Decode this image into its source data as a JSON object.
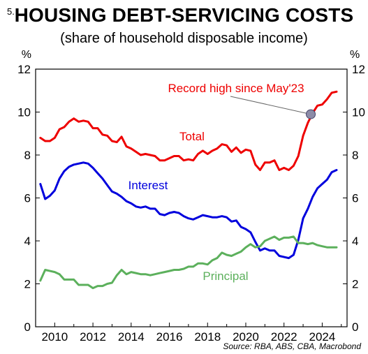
{
  "figure_number": "5.",
  "title": "HOUSING DEBT-SERVICING COSTS",
  "subtitle": "(share of household disposable income)",
  "source": "Source: RBA, ABS, CBA, Macrobond",
  "chart_data": {
    "type": "line",
    "y_unit_left": "%",
    "y_unit_right": "%",
    "xlim": [
      2009.0,
      2025.3
    ],
    "ylim": [
      0,
      12
    ],
    "x_ticks": [
      2010,
      2012,
      2014,
      2016,
      2018,
      2020,
      2022,
      2024
    ],
    "y_ticks": [
      0,
      2,
      4,
      6,
      8,
      10,
      12
    ],
    "grid": false,
    "series": [
      {
        "name": "Total",
        "color": "#ee0000",
        "points": [
          [
            2009.25,
            8.8
          ],
          [
            2009.5,
            8.65
          ],
          [
            2009.75,
            8.65
          ],
          [
            2010,
            8.8
          ],
          [
            2010.25,
            9.2
          ],
          [
            2010.5,
            9.3
          ],
          [
            2010.75,
            9.55
          ],
          [
            2011,
            9.7
          ],
          [
            2011.25,
            9.55
          ],
          [
            2011.5,
            9.6
          ],
          [
            2011.75,
            9.55
          ],
          [
            2012,
            9.25
          ],
          [
            2012.25,
            9.25
          ],
          [
            2012.5,
            8.95
          ],
          [
            2012.75,
            8.9
          ],
          [
            2013,
            8.65
          ],
          [
            2013.25,
            8.6
          ],
          [
            2013.5,
            8.85
          ],
          [
            2013.75,
            8.4
          ],
          [
            2014,
            8.3
          ],
          [
            2014.25,
            8.15
          ],
          [
            2014.5,
            8.0
          ],
          [
            2014.75,
            8.05
          ],
          [
            2015,
            8.0
          ],
          [
            2015.25,
            7.95
          ],
          [
            2015.5,
            7.75
          ],
          [
            2015.75,
            7.75
          ],
          [
            2016,
            7.85
          ],
          [
            2016.25,
            7.95
          ],
          [
            2016.5,
            7.95
          ],
          [
            2016.75,
            7.75
          ],
          [
            2017,
            7.8
          ],
          [
            2017.25,
            7.75
          ],
          [
            2017.5,
            8.05
          ],
          [
            2017.75,
            8.2
          ],
          [
            2018,
            8.05
          ],
          [
            2018.25,
            8.2
          ],
          [
            2018.5,
            8.3
          ],
          [
            2018.75,
            8.5
          ],
          [
            2019,
            8.45
          ],
          [
            2019.25,
            8.15
          ],
          [
            2019.5,
            8.35
          ],
          [
            2019.75,
            8.1
          ],
          [
            2020,
            8.25
          ],
          [
            2020.25,
            8.2
          ],
          [
            2020.5,
            7.55
          ],
          [
            2020.75,
            7.3
          ],
          [
            2021,
            7.65
          ],
          [
            2021.25,
            7.65
          ],
          [
            2021.5,
            7.75
          ],
          [
            2021.75,
            7.3
          ],
          [
            2022,
            7.4
          ],
          [
            2022.25,
            7.3
          ],
          [
            2022.5,
            7.5
          ],
          [
            2022.75,
            7.95
          ],
          [
            2023,
            8.9
          ],
          [
            2023.25,
            9.5
          ],
          [
            2023.5,
            9.95
          ],
          [
            2023.75,
            10.3
          ],
          [
            2024,
            10.35
          ],
          [
            2024.25,
            10.6
          ],
          [
            2024.5,
            10.9
          ],
          [
            2024.75,
            10.95
          ]
        ]
      },
      {
        "name": "Interest",
        "color": "#0000dd",
        "points": [
          [
            2009.25,
            6.65
          ],
          [
            2009.5,
            5.95
          ],
          [
            2009.75,
            6.1
          ],
          [
            2010,
            6.35
          ],
          [
            2010.25,
            6.9
          ],
          [
            2010.5,
            7.25
          ],
          [
            2010.75,
            7.45
          ],
          [
            2011,
            7.55
          ],
          [
            2011.25,
            7.6
          ],
          [
            2011.5,
            7.65
          ],
          [
            2011.75,
            7.6
          ],
          [
            2012,
            7.4
          ],
          [
            2012.25,
            7.15
          ],
          [
            2012.5,
            6.9
          ],
          [
            2012.75,
            6.6
          ],
          [
            2013,
            6.3
          ],
          [
            2013.25,
            6.2
          ],
          [
            2013.5,
            6.05
          ],
          [
            2013.75,
            5.85
          ],
          [
            2014,
            5.75
          ],
          [
            2014.25,
            5.6
          ],
          [
            2014.5,
            5.55
          ],
          [
            2014.75,
            5.6
          ],
          [
            2015,
            5.5
          ],
          [
            2015.25,
            5.5
          ],
          [
            2015.5,
            5.25
          ],
          [
            2015.75,
            5.2
          ],
          [
            2016,
            5.3
          ],
          [
            2016.25,
            5.35
          ],
          [
            2016.5,
            5.3
          ],
          [
            2016.75,
            5.15
          ],
          [
            2017,
            5.05
          ],
          [
            2017.25,
            5.0
          ],
          [
            2017.5,
            5.1
          ],
          [
            2017.75,
            5.2
          ],
          [
            2018,
            5.15
          ],
          [
            2018.25,
            5.1
          ],
          [
            2018.5,
            5.1
          ],
          [
            2018.75,
            5.15
          ],
          [
            2019,
            5.1
          ],
          [
            2019.25,
            4.9
          ],
          [
            2019.5,
            4.95
          ],
          [
            2019.75,
            4.65
          ],
          [
            2020,
            4.55
          ],
          [
            2020.25,
            4.4
          ],
          [
            2020.5,
            3.95
          ],
          [
            2020.75,
            3.55
          ],
          [
            2021,
            3.65
          ],
          [
            2021.25,
            3.55
          ],
          [
            2021.5,
            3.55
          ],
          [
            2021.75,
            3.3
          ],
          [
            2022,
            3.25
          ],
          [
            2022.25,
            3.2
          ],
          [
            2022.5,
            3.35
          ],
          [
            2022.75,
            4.05
          ],
          [
            2023,
            5.05
          ],
          [
            2023.25,
            5.5
          ],
          [
            2023.5,
            6.05
          ],
          [
            2023.75,
            6.45
          ],
          [
            2024,
            6.65
          ],
          [
            2024.25,
            6.85
          ],
          [
            2024.5,
            7.2
          ],
          [
            2024.75,
            7.3
          ]
        ]
      },
      {
        "name": "Principal",
        "color": "#5cb05c",
        "points": [
          [
            2009.25,
            2.15
          ],
          [
            2009.5,
            2.65
          ],
          [
            2009.75,
            2.6
          ],
          [
            2010,
            2.55
          ],
          [
            2010.25,
            2.45
          ],
          [
            2010.5,
            2.2
          ],
          [
            2010.75,
            2.2
          ],
          [
            2011,
            2.2
          ],
          [
            2011.25,
            1.95
          ],
          [
            2011.5,
            1.95
          ],
          [
            2011.75,
            1.95
          ],
          [
            2012,
            1.8
          ],
          [
            2012.25,
            1.9
          ],
          [
            2012.5,
            1.9
          ],
          [
            2012.75,
            2.0
          ],
          [
            2013,
            2.05
          ],
          [
            2013.25,
            2.4
          ],
          [
            2013.5,
            2.65
          ],
          [
            2013.75,
            2.45
          ],
          [
            2014,
            2.55
          ],
          [
            2014.25,
            2.5
          ],
          [
            2014.5,
            2.45
          ],
          [
            2014.75,
            2.45
          ],
          [
            2015,
            2.4
          ],
          [
            2015.25,
            2.45
          ],
          [
            2015.5,
            2.5
          ],
          [
            2015.75,
            2.55
          ],
          [
            2016,
            2.6
          ],
          [
            2016.25,
            2.65
          ],
          [
            2016.5,
            2.65
          ],
          [
            2016.75,
            2.7
          ],
          [
            2017,
            2.8
          ],
          [
            2017.25,
            2.8
          ],
          [
            2017.5,
            2.95
          ],
          [
            2017.75,
            2.95
          ],
          [
            2018,
            2.9
          ],
          [
            2018.25,
            3.1
          ],
          [
            2018.5,
            3.2
          ],
          [
            2018.75,
            3.45
          ],
          [
            2019,
            3.35
          ],
          [
            2019.25,
            3.3
          ],
          [
            2019.5,
            3.4
          ],
          [
            2019.75,
            3.5
          ],
          [
            2020,
            3.7
          ],
          [
            2020.25,
            3.85
          ],
          [
            2020.5,
            3.7
          ],
          [
            2020.75,
            3.75
          ],
          [
            2021,
            4.0
          ],
          [
            2021.25,
            4.1
          ],
          [
            2021.5,
            4.2
          ],
          [
            2021.75,
            4.05
          ],
          [
            2022,
            4.15
          ],
          [
            2022.25,
            4.15
          ],
          [
            2022.5,
            4.2
          ],
          [
            2022.75,
            3.9
          ],
          [
            2023,
            3.9
          ],
          [
            2023.25,
            3.85
          ],
          [
            2023.5,
            3.9
          ],
          [
            2023.75,
            3.8
          ],
          [
            2024,
            3.75
          ],
          [
            2024.25,
            3.7
          ],
          [
            2024.5,
            3.7
          ],
          [
            2024.75,
            3.7
          ]
        ]
      }
    ],
    "annotations": [
      {
        "text": "Record high since May'23",
        "color": "#ee0000",
        "marker_x": 2023.4,
        "marker_y": 9.9
      },
      {
        "text": "Total",
        "color": "#ee0000"
      },
      {
        "text": "Interest",
        "color": "#0000dd"
      },
      {
        "text": "Principal",
        "color": "#5cb05c"
      }
    ]
  }
}
